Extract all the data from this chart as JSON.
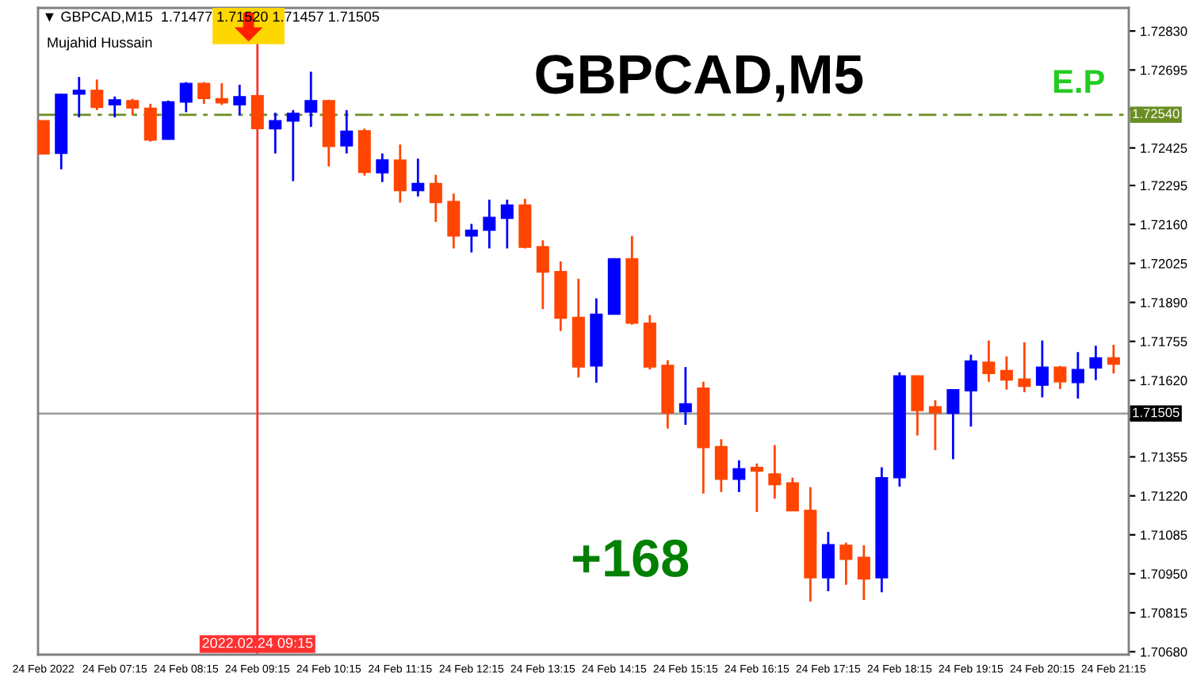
{
  "chart_data": {
    "type": "candlestick",
    "title": "GBPCAD,M5",
    "annotations": [
      "▼ GBPCAD,M15  1.71477 1.71520 1.71457 1.71505",
      "Mujahid Hussain",
      "E.P",
      "+168"
    ],
    "categories": [
      "24 Feb 2022",
      null,
      null,
      null,
      "24 Feb 07:15",
      null,
      null,
      null,
      "24 Feb 08:15",
      null,
      null,
      null,
      "24 Feb 09:15",
      null,
      null,
      null,
      "24 Feb 10:15",
      null,
      null,
      null,
      "24 Feb 11:15",
      null,
      null,
      null,
      "24 Feb 12:15",
      null,
      null,
      null,
      "24 Feb 13:15",
      null,
      null,
      null,
      "24 Feb 14:15",
      null,
      null,
      null,
      "24 Feb 15:15",
      null,
      null,
      null,
      "24 Feb 16:15",
      null,
      null,
      null,
      "24 Feb 17:15",
      null,
      null,
      null,
      "24 Feb 18:15",
      null,
      null,
      null,
      "24 Feb 19:15",
      null,
      null,
      null,
      "24 Feb 20:15",
      null,
      null,
      null,
      "24 Feb 21:15"
    ],
    "ohlc": [
      [
        1.7252,
        1.7252,
        1.72404,
        1.72404
      ],
      [
        1.72406,
        1.72613,
        1.72351,
        1.72611
      ],
      [
        1.72611,
        1.72671,
        1.72531,
        1.72625
      ],
      [
        1.72625,
        1.72662,
        1.72556,
        1.72565
      ],
      [
        1.72574,
        1.72603,
        1.72531,
        1.72592
      ],
      [
        1.72589,
        1.72595,
        1.72538,
        1.72563
      ],
      [
        1.72563,
        1.72578,
        1.72447,
        1.72452
      ],
      [
        1.72455,
        1.72589,
        1.72454,
        1.72585
      ],
      [
        1.72584,
        1.72653,
        1.72549,
        1.72649
      ],
      [
        1.72649,
        1.72653,
        1.72578,
        1.72596
      ],
      [
        1.72596,
        1.72649,
        1.72574,
        1.72581
      ],
      [
        1.72574,
        1.72644,
        1.72538,
        1.72603
      ],
      [
        1.72606,
        1.72607,
        1.72488,
        1.72492
      ],
      [
        1.72491,
        1.72547,
        1.72406,
        1.7252
      ],
      [
        1.72518,
        1.72556,
        1.7231,
        1.72545
      ],
      [
        1.72549,
        1.72689,
        1.72498,
        1.72589
      ],
      [
        1.72589,
        1.72592,
        1.72361,
        1.7243
      ],
      [
        1.72432,
        1.72556,
        1.72406,
        1.72483
      ],
      [
        1.72485,
        1.72492,
        1.72329,
        1.7234
      ],
      [
        1.72339,
        1.72406,
        1.72307,
        1.72384
      ],
      [
        1.72383,
        1.72437,
        1.72236,
        1.72277
      ],
      [
        1.72277,
        1.72388,
        1.72257,
        1.72302
      ],
      [
        1.72302,
        1.72332,
        1.72169,
        1.72236
      ],
      [
        1.7224,
        1.72267,
        1.72077,
        1.7212
      ],
      [
        1.7212,
        1.72162,
        1.72063,
        1.7214
      ],
      [
        1.7214,
        1.72246,
        1.72077,
        1.72185
      ],
      [
        1.72181,
        1.72246,
        1.72077,
        1.72227
      ],
      [
        1.72227,
        1.72249,
        1.72077,
        1.72081
      ],
      [
        1.72083,
        1.72105,
        1.71867,
        1.71995
      ],
      [
        1.71997,
        1.72032,
        1.71791,
        1.71835
      ],
      [
        1.71838,
        1.71972,
        1.7163,
        1.71666
      ],
      [
        1.7167,
        1.71904,
        1.71612,
        1.71849
      ],
      [
        1.71849,
        1.72043,
        1.71848,
        1.72041
      ],
      [
        1.72041,
        1.7212,
        1.71813,
        1.71818
      ],
      [
        1.71818,
        1.71846,
        1.71658,
        1.71666
      ],
      [
        1.71672,
        1.7169,
        1.71453,
        1.71507
      ],
      [
        1.71511,
        1.71666,
        1.71466,
        1.71539
      ],
      [
        1.71593,
        1.71615,
        1.71228,
        1.71387
      ],
      [
        1.71391,
        1.71416,
        1.71233,
        1.71277
      ],
      [
        1.71277,
        1.71343,
        1.71233,
        1.71314
      ],
      [
        1.71319,
        1.71332,
        1.71164,
        1.71305
      ],
      [
        1.71296,
        1.71396,
        1.7121,
        1.71259
      ],
      [
        1.71265,
        1.71283,
        1.71168,
        1.71168
      ],
      [
        1.7117,
        1.7125,
        1.70854,
        1.70936
      ],
      [
        1.70936,
        1.71095,
        1.7089,
        1.71051
      ],
      [
        1.71049,
        1.71058,
        1.70912,
        1.71
      ],
      [
        1.71007,
        1.71049,
        1.70859,
        1.70932
      ],
      [
        1.70936,
        1.71319,
        1.70886,
        1.71283
      ],
      [
        1.71283,
        1.71648,
        1.71252,
        1.71636
      ],
      [
        1.71636,
        1.71637,
        1.71429,
        1.71515
      ],
      [
        1.71529,
        1.71551,
        1.71378,
        1.71507
      ],
      [
        1.71506,
        1.71588,
        1.71347,
        1.71588
      ],
      [
        1.71584,
        1.71709,
        1.7146,
        1.71687
      ],
      [
        1.71683,
        1.71758,
        1.71615,
        1.71644
      ],
      [
        1.71654,
        1.71703,
        1.71588,
        1.71621
      ],
      [
        1.71625,
        1.71752,
        1.71579,
        1.71599
      ],
      [
        1.71603,
        1.71758,
        1.71561,
        1.71666
      ],
      [
        1.71666,
        1.7167,
        1.7159,
        1.71615
      ],
      [
        1.71612,
        1.71718,
        1.71557,
        1.71658
      ],
      [
        1.71663,
        1.7174,
        1.71621,
        1.71698
      ],
      [
        1.71698,
        1.71743,
        1.71644,
        1.71676
      ]
    ],
    "colors": [
      "#ff4500",
      "#0000ff",
      "#0000ff",
      "#ff4500",
      "#0000ff",
      "#ff4500",
      "#ff4500",
      "#0000ff",
      "#0000ff",
      "#ff4500",
      "#ff4500",
      "#0000ff",
      "#ff4500",
      "#0000ff",
      "#0000ff",
      "#0000ff",
      "#ff4500",
      "#0000ff",
      "#ff4500",
      "#0000ff",
      "#ff4500",
      "#0000ff",
      "#ff4500",
      "#ff4500",
      "#0000ff",
      "#0000ff",
      "#0000ff",
      "#ff4500",
      "#ff4500",
      "#ff4500",
      "#ff4500",
      "#0000ff",
      "#0000ff",
      "#ff4500",
      "#ff4500",
      "#ff4500",
      "#0000ff",
      "#ff4500",
      "#ff4500",
      "#0000ff",
      "#ff4500",
      "#ff4500",
      "#ff4500",
      "#ff4500",
      "#0000ff",
      "#ff4500",
      "#ff4500",
      "#0000ff",
      "#0000ff",
      "#ff4500",
      "#ff4500",
      "#0000ff",
      "#0000ff",
      "#ff4500",
      "#ff4500",
      "#ff4500",
      "#0000ff",
      "#ff4500",
      "#0000ff",
      "#0000ff",
      "#ff4500"
    ],
    "ylim": [
      1.7067,
      1.7291
    ],
    "yticks": [
      {
        "value": 1.7283,
        "label": "1.72830"
      },
      {
        "value": 1.72695,
        "label": "1.72695"
      },
      {
        "value": 1.7256,
        "label": null
      },
      {
        "value": 1.72425,
        "label": "1.72425"
      },
      {
        "value": 1.72295,
        "label": "1.72295"
      },
      {
        "value": 1.7216,
        "label": "1.72160"
      },
      {
        "value": 1.72025,
        "label": "1.72025"
      },
      {
        "value": 1.7189,
        "label": "1.71890"
      },
      {
        "value": 1.71755,
        "label": "1.71755"
      },
      {
        "value": 1.7162,
        "label": "1.71620"
      },
      {
        "value": 1.71485,
        "label": null
      },
      {
        "value": 1.71355,
        "label": "1.71355"
      },
      {
        "value": 1.7122,
        "label": "1.71220"
      },
      {
        "value": 1.71085,
        "label": "1.71085"
      },
      {
        "value": 1.7095,
        "label": "1.70950"
      },
      {
        "value": 1.70815,
        "label": "1.70815"
      },
      {
        "value": 1.7068,
        "label": "1.70680"
      }
    ],
    "ref_lines": [
      {
        "axis": "y",
        "value": 1.7254,
        "label": "1.72540",
        "color": "#6b8e23",
        "line_style": "dashed"
      },
      {
        "axis": "y",
        "value": 1.71505,
        "label": "1.71505",
        "color": "#a0a0a0",
        "line_style": "solid"
      },
      {
        "axis": "x",
        "value": "24 Feb 09:15",
        "label": "2022.02.24 09:15",
        "color": "#ff3030",
        "line_style": "solid"
      }
    ],
    "grid": false,
    "legend": false
  }
}
